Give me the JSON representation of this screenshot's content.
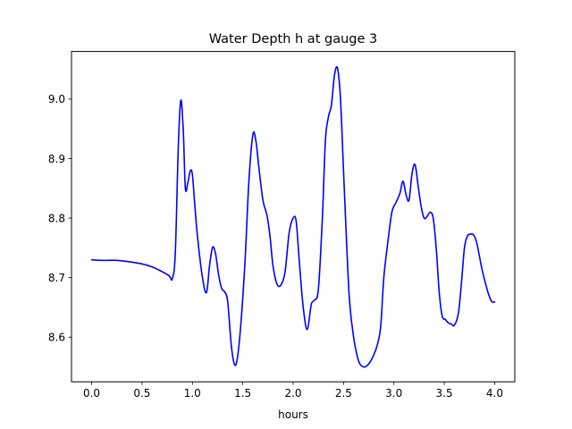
{
  "chart_data": {
    "type": "line",
    "title": "Water Depth h at gauge 3",
    "xlabel": "hours",
    "ylabel": "",
    "xlim": [
      -0.2,
      4.2
    ],
    "ylim": [
      8.525,
      9.08
    ],
    "xticks": [
      0.0,
      0.5,
      1.0,
      1.5,
      2.0,
      2.5,
      3.0,
      3.5,
      4.0
    ],
    "xtick_labels": [
      "0.0",
      "0.5",
      "1.0",
      "1.5",
      "2.0",
      "2.5",
      "3.0",
      "3.5",
      "4.0"
    ],
    "yticks": [
      8.6,
      8.7,
      8.8,
      8.9,
      9.0
    ],
    "ytick_labels": [
      "8.6",
      "8.7",
      "8.8",
      "8.9",
      "9.0"
    ],
    "grid": false,
    "legend": "none",
    "series": [
      {
        "color": "#0000ff",
        "x": [
          0.0,
          0.1,
          0.25,
          0.4,
          0.5,
          0.6,
          0.7,
          0.77,
          0.8,
          0.83,
          0.86,
          0.885,
          0.91,
          0.93,
          0.955,
          0.98,
          1.0,
          1.02,
          1.05,
          1.1,
          1.14,
          1.17,
          1.2,
          1.23,
          1.26,
          1.29,
          1.32,
          1.35,
          1.39,
          1.43,
          1.47,
          1.52,
          1.56,
          1.6,
          1.63,
          1.66,
          1.7,
          1.74,
          1.77,
          1.8,
          1.84,
          1.88,
          1.92,
          1.96,
          2.0,
          2.03,
          2.06,
          2.1,
          2.14,
          2.18,
          2.21,
          2.25,
          2.29,
          2.32,
          2.35,
          2.38,
          2.41,
          2.44,
          2.47,
          2.5,
          2.53,
          2.56,
          2.6,
          2.65,
          2.7,
          2.75,
          2.8,
          2.84,
          2.87,
          2.9,
          2.94,
          2.98,
          3.02,
          3.06,
          3.09,
          3.12,
          3.15,
          3.18,
          3.21,
          3.24,
          3.27,
          3.3,
          3.33,
          3.36,
          3.39,
          3.42,
          3.45,
          3.48,
          3.51,
          3.54,
          3.57,
          3.6,
          3.64,
          3.67,
          3.7,
          3.73,
          3.76,
          3.79,
          3.82,
          3.85,
          3.88,
          3.91,
          3.94,
          3.97,
          4.0
        ],
        "y": [
          8.73,
          8.729,
          8.729,
          8.726,
          8.723,
          8.718,
          8.71,
          8.703,
          8.698,
          8.74,
          8.92,
          8.998,
          8.945,
          8.85,
          8.86,
          8.88,
          8.873,
          8.83,
          8.77,
          8.7,
          8.675,
          8.72,
          8.751,
          8.74,
          8.705,
          8.682,
          8.676,
          8.66,
          8.58,
          8.553,
          8.6,
          8.72,
          8.86,
          8.94,
          8.93,
          8.885,
          8.83,
          8.805,
          8.77,
          8.72,
          8.689,
          8.688,
          8.71,
          8.775,
          8.8,
          8.795,
          8.73,
          8.65,
          8.613,
          8.655,
          8.662,
          8.68,
          8.8,
          8.93,
          8.97,
          8.99,
          9.04,
          9.052,
          9.0,
          8.88,
          8.76,
          8.66,
          8.6,
          8.56,
          8.55,
          8.555,
          8.57,
          8.59,
          8.62,
          8.7,
          8.76,
          8.81,
          8.826,
          8.842,
          8.862,
          8.84,
          8.83,
          8.875,
          8.89,
          8.855,
          8.82,
          8.8,
          8.803,
          8.81,
          8.8,
          8.75,
          8.675,
          8.635,
          8.63,
          8.624,
          8.622,
          8.62,
          8.64,
          8.69,
          8.75,
          8.77,
          8.773,
          8.772,
          8.76,
          8.735,
          8.71,
          8.69,
          8.672,
          8.66,
          8.659
        ]
      }
    ]
  }
}
